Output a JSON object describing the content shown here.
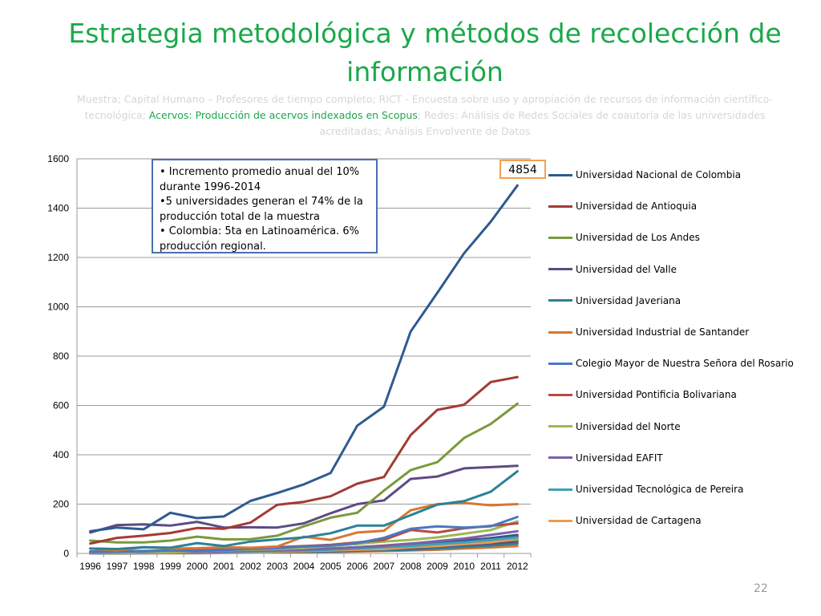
{
  "slide": {
    "title": "Estrategia metodológica y métodos de recolección de información",
    "subtitle_part1": "Muestra; Capital Humano – Profesores de tiempo completo; RICT - Encuesta  sobre uso y apropiación de recursos de información científico-tecnológica; ",
    "subtitle_highlight": "Acervos: Producción de acervos indexados en Scopus",
    "subtitle_part2": "; Redes: Análisis de Redes Sociales de coautoría de las universidades acreditadas; Análisis Envolvente de Datos",
    "page_number": "22"
  },
  "annotation_box": {
    "line1": "• Incremento promedio anual del 10% durante 1996-2014",
    "line2": "•5 universidades generan el 74% de la producción total de la muestra",
    "line3": "• Colombia: 5ta en Latinoamérica. 6% producción regional."
  },
  "callout": {
    "value": "4854"
  },
  "chart_data": {
    "type": "line",
    "title": "",
    "xlabel": "",
    "ylabel": "",
    "ylim": [
      0,
      1600
    ],
    "yticks": [
      0,
      200,
      400,
      600,
      800,
      1000,
      1200,
      1400,
      1600
    ],
    "ytick_labels": [
      "0",
      "200",
      "400",
      "600",
      "800",
      "1000",
      "1200",
      "1400",
      "1600"
    ],
    "grid": true,
    "legend_position": "right",
    "categories": [
      "1996",
      "1997",
      "1998",
      "1999",
      "2000",
      "2001",
      "2002",
      "2003",
      "2004",
      "2005",
      "2006",
      "2007",
      "2008",
      "2009",
      "2010",
      "2011",
      "2012"
    ],
    "series": [
      {
        "name": "Universidad Nacional de Colombia",
        "color": "#2e5b8f",
        "legend": true,
        "values": [
          90,
          105,
          98,
          165,
          143,
          150,
          213,
          245,
          280,
          326,
          518,
          595,
          900,
          1057,
          1217,
          1345,
          1492
        ]
      },
      {
        "name": "Universidad de Antioquia",
        "color": "#a33b36",
        "legend": true,
        "values": [
          40,
          63,
          72,
          83,
          103,
          100,
          125,
          197,
          209,
          232,
          283,
          310,
          480,
          582,
          603,
          695,
          715
        ]
      },
      {
        "name": "Universidad de Los Andes",
        "color": "#7a9a3d",
        "legend": true,
        "values": [
          52,
          45,
          45,
          52,
          68,
          57,
          58,
          72,
          110,
          145,
          165,
          255,
          338,
          370,
          468,
          525,
          607
        ]
      },
      {
        "name": "Universidad del Valle",
        "color": "#5e4b84",
        "legend": true,
        "values": [
          85,
          115,
          118,
          113,
          128,
          105,
          106,
          105,
          122,
          163,
          200,
          215,
          302,
          312,
          345,
          350,
          355
        ]
      },
      {
        "name": "Universidad Javeriana",
        "color": "#2c8199",
        "legend": true,
        "values": [
          20,
          18,
          25,
          23,
          42,
          30,
          48,
          57,
          65,
          82,
          113,
          113,
          155,
          198,
          212,
          250,
          333
        ]
      },
      {
        "name": "Universidad Industrial de Santander",
        "color": "#d87730",
        "legend": true,
        "values": [
          20,
          12,
          25,
          20,
          21,
          25,
          23,
          28,
          68,
          55,
          85,
          92,
          175,
          200,
          205,
          195,
          200
        ]
      },
      {
        "name": "Colegio Mayor de Nuestra Señora del Rosario",
        "color": "#4a78c2",
        "legend": true,
        "values": [
          8,
          7,
          9,
          12,
          10,
          14,
          18,
          22,
          28,
          32,
          42,
          63,
          100,
          110,
          105,
          110,
          148
        ]
      },
      {
        "name": "Universidad Pontificia Bolivariana",
        "color": "#b84a43",
        "legend": true,
        "values": [
          5,
          8,
          10,
          12,
          15,
          18,
          20,
          25,
          30,
          35,
          45,
          55,
          95,
          85,
          102,
          112,
          122
        ]
      },
      {
        "name": "Universidad del Norte",
        "color": "#9ab956",
        "legend": true,
        "values": [
          3,
          5,
          8,
          6,
          10,
          12,
          15,
          18,
          22,
          30,
          38,
          48,
          55,
          65,
          80,
          95,
          130
        ]
      },
      {
        "name": "Universidad EAFIT",
        "color": "#7b62a8",
        "legend": true,
        "values": [
          2,
          3,
          4,
          5,
          6,
          8,
          10,
          12,
          15,
          20,
          25,
          30,
          40,
          50,
          60,
          75,
          90
        ]
      },
      {
        "name": "Universidad Tecnológica de Pereira",
        "color": "#3fa1b8",
        "legend": true,
        "values": [
          1,
          2,
          3,
          4,
          5,
          6,
          8,
          10,
          12,
          15,
          20,
          25,
          30,
          38,
          45,
          55,
          65
        ]
      },
      {
        "name": "Universidad de Cartagena",
        "color": "#f09a4d",
        "legend": true,
        "values": [
          1,
          2,
          2,
          3,
          4,
          5,
          6,
          8,
          10,
          12,
          15,
          18,
          25,
          30,
          38,
          45,
          60
        ]
      },
      {
        "name": "",
        "color": "#2e5b8f",
        "legend": false,
        "values": [
          2,
          3,
          4,
          5,
          6,
          7,
          9,
          11,
          14,
          17,
          22,
          28,
          35,
          42,
          50,
          62,
          75
        ]
      },
      {
        "name": "",
        "color": "#a33b36",
        "legend": false,
        "values": [
          3,
          4,
          5,
          6,
          7,
          9,
          11,
          14,
          16,
          20,
          25,
          32,
          40,
          45,
          55,
          60,
          68
        ]
      },
      {
        "name": "",
        "color": "#7a9a3d",
        "legend": false,
        "values": [
          1,
          1,
          2,
          3,
          4,
          5,
          6,
          7,
          9,
          12,
          16,
          20,
          26,
          33,
          40,
          48,
          55
        ]
      },
      {
        "name": "",
        "color": "#5e4b84",
        "legend": false,
        "values": [
          1,
          2,
          2,
          3,
          3,
          4,
          5,
          6,
          8,
          10,
          14,
          18,
          22,
          28,
          35,
          40,
          48
        ]
      },
      {
        "name": "",
        "color": "#2c8199",
        "legend": false,
        "values": [
          0,
          1,
          1,
          2,
          2,
          3,
          4,
          5,
          6,
          8,
          10,
          12,
          15,
          20,
          26,
          32,
          40
        ]
      },
      {
        "name": "",
        "color": "#d87730",
        "legend": false,
        "values": [
          0,
          0,
          1,
          1,
          1,
          2,
          3,
          4,
          5,
          6,
          8,
          10,
          12,
          15,
          20,
          24,
          30
        ]
      }
    ]
  }
}
